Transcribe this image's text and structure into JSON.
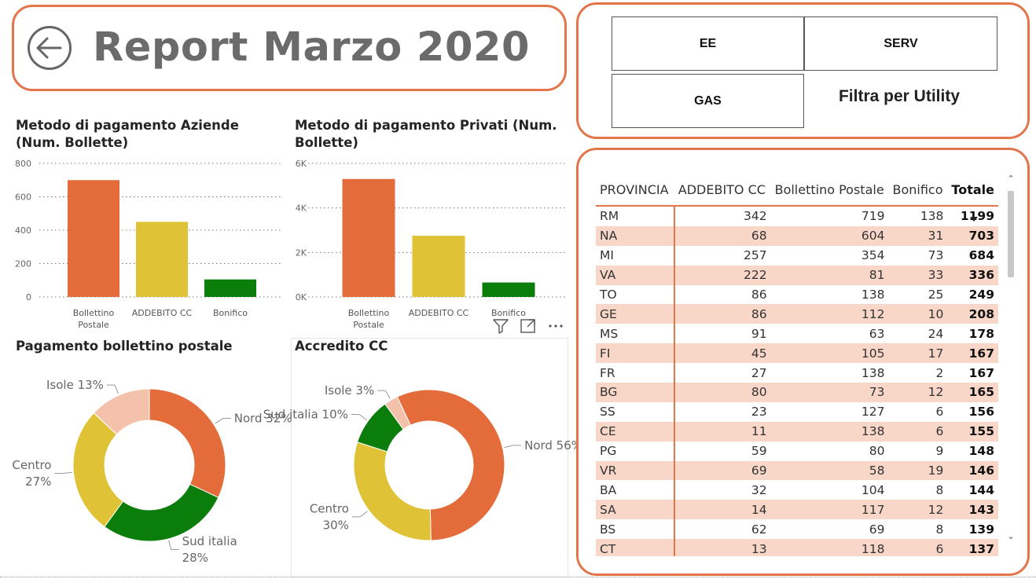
{
  "report": {
    "title": "Report Marzo 2020"
  },
  "nav": {
    "back_icon": "arrow-left-circle-icon"
  },
  "filters": {
    "buttons": [
      {
        "label": "EE"
      },
      {
        "label": "SERV"
      },
      {
        "label": "GAS"
      }
    ],
    "label": "Filtra per Utility"
  },
  "colors": {
    "accent": "#e3754a",
    "bollettino": "#e46c3a",
    "addebito": "#e0c236",
    "bonifico": "#0a7d0a",
    "isole": "#f4c2ab",
    "row_stripe": "#f8d6c8"
  },
  "visual_header": {
    "icons": [
      "filter-icon",
      "focus-mode-icon",
      "more-options-icon"
    ]
  },
  "chart_data": [
    {
      "type": "bar",
      "title": "Metodo di pagamento Aziende (Num. Bollette)",
      "categories": [
        "Bollettino Postale",
        "ADDEBITO CC",
        "Bonifico"
      ],
      "category_lines": [
        [
          "Bollettino",
          "Postale"
        ],
        [
          "ADDEBITO CC"
        ],
        [
          "Bonifico"
        ]
      ],
      "values": [
        700,
        450,
        105
      ],
      "colors": [
        "#e46c3a",
        "#e0c236",
        "#0a7d0a"
      ],
      "ylim": [
        0,
        800
      ],
      "yticks": [
        0,
        200,
        400,
        600,
        800
      ],
      "ytick_labels": [
        "0",
        "200",
        "400",
        "600",
        "800"
      ],
      "grid": true
    },
    {
      "type": "bar",
      "title": "Metodo di pagamento Privati (Num. Bollette)",
      "categories": [
        "Bollettino Postale",
        "ADDEBITO CC",
        "Bonifico"
      ],
      "category_lines": [
        [
          "Bollettino",
          "Postale"
        ],
        [
          "ADDEBITO CC"
        ],
        [
          "Bonifico"
        ]
      ],
      "values": [
        5300,
        2750,
        650
      ],
      "colors": [
        "#e46c3a",
        "#e0c236",
        "#0a7d0a"
      ],
      "ylim": [
        0,
        6000
      ],
      "yticks": [
        0,
        2000,
        4000,
        6000
      ],
      "ytick_labels": [
        "0K",
        "2K",
        "4K",
        "6K"
      ],
      "grid": true
    },
    {
      "type": "pie",
      "title": "Pagamento bollettino postale",
      "slices": [
        {
          "name": "Nord",
          "value": 32,
          "label": [
            "Nord 32%"
          ],
          "color": "#e46c3a"
        },
        {
          "name": "Sud italia",
          "value": 28,
          "label": [
            "Sud italia",
            "28%"
          ],
          "color": "#0a7d0a"
        },
        {
          "name": "Centro",
          "value": 27,
          "label": [
            "Centro",
            "27%"
          ],
          "color": "#e0c236"
        },
        {
          "name": "Isole",
          "value": 13,
          "label": [
            "Isole 13%"
          ],
          "color": "#f4c2ab"
        }
      ]
    },
    {
      "type": "pie",
      "title": "Accredito CC",
      "slices": [
        {
          "name": "Isole",
          "value": 3,
          "label": [
            "Isole 3%"
          ],
          "color": "#f4c2ab"
        },
        {
          "name": "Nord",
          "value": 56,
          "label": [
            "Nord 56%"
          ],
          "color": "#e46c3a"
        },
        {
          "name": "Centro",
          "value": 30,
          "label": [
            "Centro",
            "30%"
          ],
          "color": "#e0c236"
        },
        {
          "name": "Sud italia",
          "value": 10,
          "label": [
            "Sud italia 10%"
          ],
          "color": "#0a7d0a"
        }
      ]
    }
  ],
  "table": {
    "columns": [
      "PROVINCIA",
      "ADDEBITO CC",
      "Bollettino Postale",
      "Bonifico",
      "Totale"
    ],
    "sorted_by": "Totale",
    "rows": [
      [
        "RM",
        "342",
        "719",
        "138",
        "1199"
      ],
      [
        "NA",
        "68",
        "604",
        "31",
        "703"
      ],
      [
        "MI",
        "257",
        "354",
        "73",
        "684"
      ],
      [
        "VA",
        "222",
        "81",
        "33",
        "336"
      ],
      [
        "TO",
        "86",
        "138",
        "25",
        "249"
      ],
      [
        "GE",
        "86",
        "112",
        "10",
        "208"
      ],
      [
        "MS",
        "91",
        "63",
        "24",
        "178"
      ],
      [
        "FI",
        "45",
        "105",
        "17",
        "167"
      ],
      [
        "FR",
        "27",
        "138",
        "2",
        "167"
      ],
      [
        "BG",
        "80",
        "73",
        "12",
        "165"
      ],
      [
        "SS",
        "23",
        "127",
        "6",
        "156"
      ],
      [
        "CE",
        "11",
        "138",
        "6",
        "155"
      ],
      [
        "PG",
        "59",
        "80",
        "9",
        "148"
      ],
      [
        "VR",
        "69",
        "58",
        "19",
        "146"
      ],
      [
        "BA",
        "32",
        "104",
        "8",
        "144"
      ],
      [
        "SA",
        "14",
        "117",
        "12",
        "143"
      ],
      [
        "BS",
        "62",
        "69",
        "8",
        "139"
      ],
      [
        "CT",
        "13",
        "118",
        "6",
        "137"
      ]
    ]
  },
  "scrollbar": {
    "up_glyph": "⌃",
    "down_glyph": "⌄"
  }
}
